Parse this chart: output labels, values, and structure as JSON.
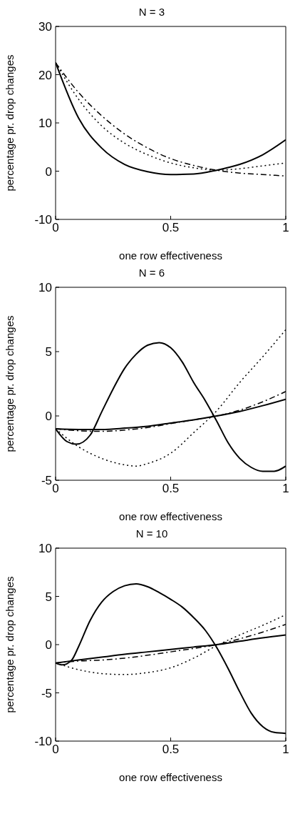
{
  "chart_data": [
    {
      "type": "line",
      "title": "N = 3",
      "xlabel": "one row effectiveness",
      "ylabel": "percentage pr. drop changes",
      "xlim": [
        0,
        1
      ],
      "xticks": [
        0,
        0.5,
        1
      ],
      "ylim": [
        -10,
        30
      ],
      "yticks": [
        -10,
        0,
        10,
        20,
        30
      ],
      "grid": false,
      "legend": false,
      "marker": "none",
      "series": [
        {
          "color": "#000000",
          "line_style": "solid",
          "x": [
            0,
            0.1,
            0.2,
            0.3,
            0.4,
            0.5,
            0.6,
            0.7,
            0.8,
            0.9,
            1
          ],
          "values": [
            22.5,
            11,
            4.8,
            1.4,
            -0.1,
            -0.7,
            -0.6,
            0.2,
            1.4,
            3.4,
            6.5
          ]
        },
        {
          "color": "#000000",
          "line_style": "dotted",
          "x": [
            0,
            0.1,
            0.2,
            0.3,
            0.4,
            0.5,
            0.6,
            0.7,
            0.8,
            0.9,
            1
          ],
          "values": [
            22.5,
            14.9,
            9.4,
            5.8,
            3.4,
            1.7,
            0.7,
            0.2,
            0.5,
            1.1,
            1.7
          ]
        },
        {
          "color": "#000000",
          "line_style": "dashdot",
          "x": [
            0,
            0.1,
            0.2,
            0.3,
            0.4,
            0.5,
            0.6,
            0.7,
            0.8,
            0.9,
            1
          ],
          "values": [
            22.5,
            16.3,
            11.5,
            7.7,
            4.8,
            2.6,
            1.2,
            0.2,
            -0.4,
            -0.7,
            -1
          ]
        }
      ]
    },
    {
      "type": "line",
      "title": "N = 6",
      "xlabel": "one row effectiveness",
      "ylabel": "percentage pr. drop changes",
      "xlim": [
        0,
        1
      ],
      "xticks": [
        0,
        0.5,
        1
      ],
      "ylim": [
        -5,
        10
      ],
      "yticks": [
        -5,
        0,
        5,
        10
      ],
      "grid": false,
      "legend": false,
      "marker": "none",
      "series": [
        {
          "color": "#000000",
          "line_style": "solid",
          "x": [
            0,
            0.05,
            0.09,
            0.15,
            0.2,
            0.25,
            0.3,
            0.35,
            0.4,
            0.45,
            0.5,
            0.55,
            0.6,
            0.65,
            0.7,
            0.75,
            0.8,
            0.85,
            0.9,
            0.95,
            1
          ],
          "values": [
            -1,
            -2,
            -2.2,
            -1.5,
            0.3,
            2.1,
            3.7,
            4.8,
            5.5,
            5.7,
            5.3,
            4.2,
            2.6,
            1.2,
            -0.4,
            -2.1,
            -3.3,
            -4,
            -4.3,
            -4.3,
            -3.9
          ]
        },
        {
          "color": "#000000",
          "line_style": "solid",
          "x": [
            0,
            0.1,
            0.2,
            0.3,
            0.4,
            0.5,
            0.6,
            0.7,
            0.8,
            0.9,
            1
          ],
          "values": [
            -1,
            -1.05,
            -1.05,
            -0.95,
            -0.8,
            -0.55,
            -0.3,
            0,
            0.35,
            0.8,
            1.3
          ]
        },
        {
          "color": "#000000",
          "line_style": "dashdot",
          "x": [
            0,
            0.1,
            0.2,
            0.3,
            0.4,
            0.5,
            0.6,
            0.7,
            0.8,
            0.9,
            1
          ],
          "values": [
            -1,
            -1.15,
            -1.2,
            -1.1,
            -0.9,
            -0.6,
            -0.3,
            0,
            0.45,
            1.1,
            1.9
          ]
        },
        {
          "color": "#000000",
          "line_style": "dotted",
          "x": [
            0,
            0.1,
            0.2,
            0.3,
            0.35,
            0.4,
            0.5,
            0.6,
            0.7,
            0.8,
            0.9,
            1
          ],
          "values": [
            -1,
            -2.4,
            -3.3,
            -3.8,
            -3.9,
            -3.7,
            -2.9,
            -1.3,
            0.4,
            2.6,
            4.6,
            6.7
          ]
        }
      ]
    },
    {
      "type": "line",
      "title": "N = 10",
      "xlabel": "one row effectiveness",
      "ylabel": "percentage pr. drop changes",
      "xlim": [
        0,
        1
      ],
      "xticks": [
        0,
        0.5,
        1
      ],
      "ylim": [
        -10,
        10
      ],
      "yticks": [
        -10,
        -5,
        0,
        5,
        10
      ],
      "grid": false,
      "legend": false,
      "marker": "none",
      "series": [
        {
          "color": "#000000",
          "line_style": "solid",
          "x": [
            0,
            0.03,
            0.07,
            0.1,
            0.15,
            0.2,
            0.25,
            0.3,
            0.35,
            0.4,
            0.45,
            0.5,
            0.55,
            0.6,
            0.65,
            0.7,
            0.75,
            0.8,
            0.85,
            0.9,
            0.95,
            1
          ],
          "values": [
            -1.9,
            -2.1,
            -1.6,
            -0.2,
            2.5,
            4.4,
            5.5,
            6.1,
            6.3,
            6,
            5.4,
            4.7,
            3.9,
            2.8,
            1.5,
            -0.3,
            -2.5,
            -4.9,
            -7.1,
            -8.5,
            -9.1,
            -9.2
          ]
        },
        {
          "color": "#000000",
          "line_style": "solid",
          "x": [
            0,
            0.1,
            0.2,
            0.3,
            0.4,
            0.5,
            0.6,
            0.7,
            0.8,
            0.9,
            1
          ],
          "values": [
            -1.9,
            -1.6,
            -1.3,
            -1,
            -0.75,
            -0.5,
            -0.25,
            0,
            0.35,
            0.7,
            1
          ]
        },
        {
          "color": "#000000",
          "line_style": "dashdot",
          "x": [
            0,
            0.1,
            0.2,
            0.3,
            0.4,
            0.5,
            0.6,
            0.7,
            0.8,
            0.9,
            1
          ],
          "values": [
            -1.9,
            -1.7,
            -1.6,
            -1.4,
            -1.1,
            -0.75,
            -0.4,
            0,
            0.6,
            1.3,
            2.1
          ]
        },
        {
          "color": "#000000",
          "line_style": "dotted",
          "x": [
            0,
            0.1,
            0.2,
            0.3,
            0.4,
            0.5,
            0.6,
            0.7,
            0.8,
            0.9,
            1
          ],
          "values": [
            -1.9,
            -2.6,
            -3,
            -3.1,
            -2.9,
            -2.4,
            -1.4,
            -0.1,
            1,
            2,
            3.1
          ]
        }
      ]
    }
  ]
}
